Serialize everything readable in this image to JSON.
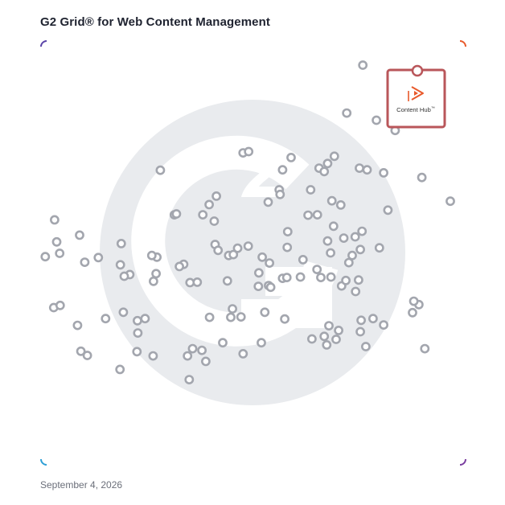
{
  "title": "G2 Grid® for Web Content Management",
  "date": "September 4, 2026",
  "colors": {
    "frame_top": "#e85a2c",
    "frame_bottom": "#4a3fa0",
    "frame_left": "#2e9fd6",
    "divider_vertical": "#8a5bb0",
    "divider_horizontal_left": "#3b5cc4",
    "divider_horizontal_right": "#c23f56",
    "point": "#a3a6ae",
    "featured": "#b9565a",
    "featured_logo": "#e8592a",
    "watermark": "#e9ebee"
  },
  "featured_product": {
    "label": "Content Hub",
    "trademark": "™",
    "icon": "play-arrow-icon",
    "x": 89.7,
    "y": 89.3
  },
  "chart_data": {
    "type": "scatter",
    "title": "G2 Grid® for Web Content Management",
    "xlabel": "",
    "ylabel": "",
    "xlim": [
      0,
      100
    ],
    "ylim": [
      0,
      100
    ],
    "grid": "quadrants",
    "x": [
      75.8,
      72.0,
      79.0,
      83.4,
      47.6,
      48.9,
      58.9,
      69.1,
      67.5,
      65.5,
      66.7,
      56.9,
      28.1,
      75.0,
      76.8,
      80.7,
      89.7,
      56.1,
      63.5,
      56.3,
      41.3,
      39.6,
      53.5,
      68.5,
      70.6,
      96.4,
      31.4,
      31.9,
      81.7,
      38.1,
      65.1,
      62.9,
      3.2,
      40.8,
      58.1,
      68.9,
      75.6,
      9.1,
      74.0,
      3.7,
      67.5,
      71.3,
      41.0,
      18.9,
      75.2,
      58.0,
      4.4,
      48.8,
      41.7,
      27.3,
      26.1,
      46.3,
      79.7,
      68.2,
      52.1,
      53.8,
      73.3,
      44.2,
      45.3,
      13.5,
      1.0,
      10.3,
      18.7,
      33.6,
      35.1,
      32.6,
      61.7,
      65.0,
      65.9,
      27.1,
      20.9,
      19.6,
      51.3,
      70.8,
      71.8,
      72.5,
      61.1,
      26.5,
      36.8,
      43.9,
      56.9,
      53.6,
      54.1,
      51.2,
      57.9,
      74.8,
      74.1,
      89.0,
      87.8,
      68.3,
      45.1,
      87.5,
      24.5,
      39.7,
      44.7,
      47.1,
      52.7,
      3.0,
      4.5,
      19.4,
      22.7,
      57.4,
      75.4,
      78.2,
      15.2,
      8.6,
      70.1,
      75.2,
      67.8,
      22.8,
      66.7,
      80.7,
      63.8,
      51.9,
      67.3,
      42.8,
      69.5,
      76.5,
      9.4,
      47.6,
      26.4,
      34.5,
      35.7,
      22.6,
      90.4,
      10.9,
      38.8,
      37.9,
      18.6,
      34.9
    ],
    "y": [
      94.3,
      83.0,
      81.3,
      78.9,
      73.6,
      73.9,
      72.5,
      72.8,
      71.1,
      70.0,
      69.2,
      69.6,
      69.5,
      70.0,
      69.6,
      68.9,
      67.8,
      64.9,
      64.9,
      63.8,
      63.4,
      61.4,
      62.0,
      62.3,
      61.3,
      62.2,
      59.0,
      59.2,
      60.1,
      59.0,
      59.0,
      58.9,
      57.8,
      57.5,
      55.0,
      56.3,
      55.1,
      54.2,
      53.8,
      52.6,
      52.8,
      53.5,
      52.0,
      52.2,
      50.8,
      51.3,
      49.9,
      51.6,
      50.6,
      49.0,
      49.4,
      51.1,
      51.2,
      50.0,
      49.0,
      47.6,
      49.4,
      49.4,
      49.6,
      48.9,
      49.1,
      47.8,
      47.2,
      47.3,
      43.0,
      46.8,
      48.4,
      46.1,
      44.2,
      45.1,
      44.9,
      44.5,
      45.3,
      42.2,
      43.5,
      47.7,
      44.3,
      43.3,
      43.1,
      43.4,
      44.0,
      42.3,
      41.9,
      42.1,
      44.2,
      43.6,
      40.9,
      37.8,
      38.6,
      44.3,
      36.8,
      35.9,
      34.5,
      34.8,
      34.8,
      34.9,
      36.0,
      37.1,
      37.6,
      36.0,
      34.0,
      34.4,
      34.1,
      34.5,
      34.5,
      32.9,
      31.7,
      31.4,
      32.8,
      31.1,
      30.3,
      33.0,
      29.7,
      28.8,
      28.3,
      28.8,
      29.6,
      27.9,
      26.8,
      26.2,
      25.7,
      25.7,
      27.4,
      26.7,
      27.4,
      25.8,
      24.4,
      27.0,
      22.5,
      20.1
    ]
  }
}
